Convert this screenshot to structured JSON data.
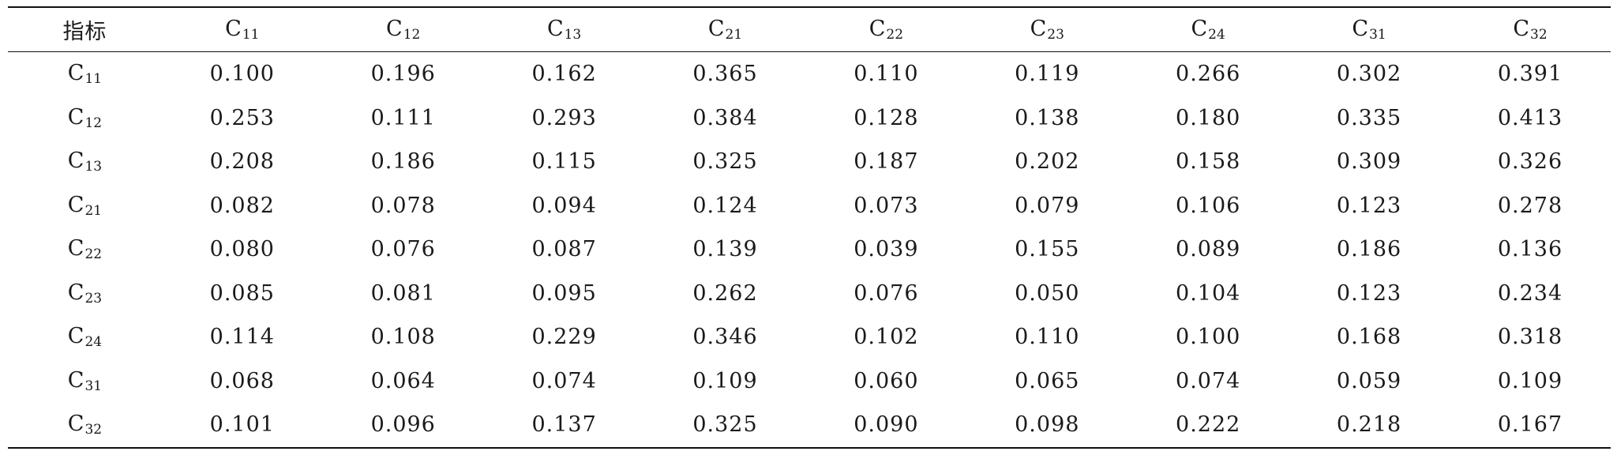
{
  "table": {
    "header": {
      "corner": "指标",
      "columns": [
        {
          "base": "C",
          "sub": "11"
        },
        {
          "base": "C",
          "sub": "12"
        },
        {
          "base": "C",
          "sub": "13"
        },
        {
          "base": "C",
          "sub": "21"
        },
        {
          "base": "C",
          "sub": "22"
        },
        {
          "base": "C",
          "sub": "23"
        },
        {
          "base": "C",
          "sub": "24"
        },
        {
          "base": "C",
          "sub": "31"
        },
        {
          "base": "C",
          "sub": "32"
        }
      ]
    },
    "rows": [
      {
        "label": {
          "base": "C",
          "sub": "11"
        },
        "cells": [
          "0.100",
          "0.196",
          "0.162",
          "0.365",
          "0.110",
          "0.119",
          "0.266",
          "0.302",
          "0.391"
        ]
      },
      {
        "label": {
          "base": "C",
          "sub": "12"
        },
        "cells": [
          "0.253",
          "0.111",
          "0.293",
          "0.384",
          "0.128",
          "0.138",
          "0.180",
          "0.335",
          "0.413"
        ]
      },
      {
        "label": {
          "base": "C",
          "sub": "13"
        },
        "cells": [
          "0.208",
          "0.186",
          "0.115",
          "0.325",
          "0.187",
          "0.202",
          "0.158",
          "0.309",
          "0.326"
        ]
      },
      {
        "label": {
          "base": "C",
          "sub": "21"
        },
        "cells": [
          "0.082",
          "0.078",
          "0.094",
          "0.124",
          "0.073",
          "0.079",
          "0.106",
          "0.123",
          "0.278"
        ]
      },
      {
        "label": {
          "base": "C",
          "sub": "22"
        },
        "cells": [
          "0.080",
          "0.076",
          "0.087",
          "0.139",
          "0.039",
          "0.155",
          "0.089",
          "0.186",
          "0.136"
        ]
      },
      {
        "label": {
          "base": "C",
          "sub": "23"
        },
        "cells": [
          "0.085",
          "0.081",
          "0.095",
          "0.262",
          "0.076",
          "0.050",
          "0.104",
          "0.123",
          "0.234"
        ]
      },
      {
        "label": {
          "base": "C",
          "sub": "24"
        },
        "cells": [
          "0.114",
          "0.108",
          "0.229",
          "0.346",
          "0.102",
          "0.110",
          "0.100",
          "0.168",
          "0.318"
        ]
      },
      {
        "label": {
          "base": "C",
          "sub": "31"
        },
        "cells": [
          "0.068",
          "0.064",
          "0.074",
          "0.109",
          "0.060",
          "0.065",
          "0.074",
          "0.059",
          "0.109"
        ]
      },
      {
        "label": {
          "base": "C",
          "sub": "32"
        },
        "cells": [
          "0.101",
          "0.096",
          "0.137",
          "0.325",
          "0.090",
          "0.098",
          "0.222",
          "0.218",
          "0.167"
        ]
      }
    ]
  }
}
